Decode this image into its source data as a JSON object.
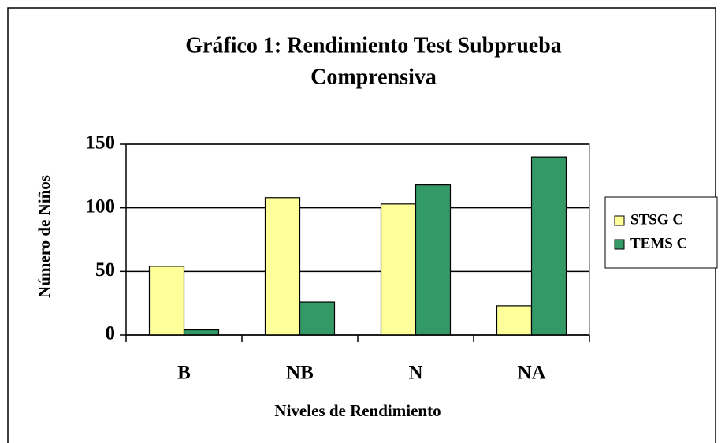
{
  "chart_data": {
    "type": "bar",
    "title": [
      "Gráfico 1: Rendimiento Test Subprueba",
      "Comprensiva"
    ],
    "x_label": "Niveles de Rendimiento",
    "y_label": "Número de Niños",
    "categories": [
      "B",
      "NB",
      "N",
      "NA"
    ],
    "series": [
      {
        "name": "STSG C",
        "color": "#ffff99",
        "values": [
          54,
          108,
          103,
          23
        ]
      },
      {
        "name": "TEMS C",
        "color": "#339966",
        "values": [
          4,
          26,
          118,
          140
        ]
      }
    ],
    "ylim": [
      0,
      150
    ],
    "yticks": [
      0,
      50,
      100,
      150
    ],
    "grid": true,
    "legend": "right"
  }
}
